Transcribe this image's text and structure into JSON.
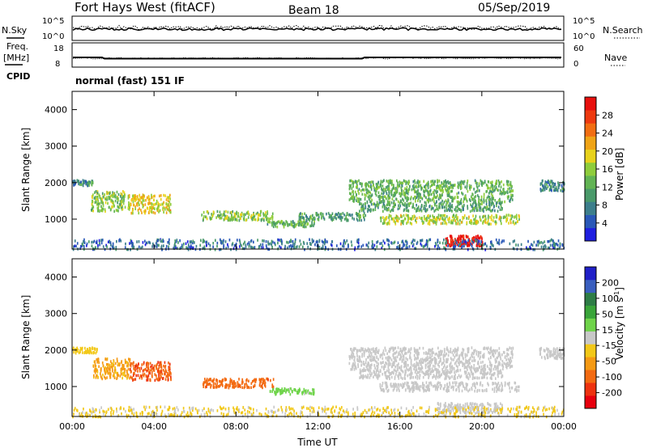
{
  "header": {
    "radar": "Fort Hays West (fitACF)",
    "beam": "Beam 18",
    "date": "05/Sep/2019"
  },
  "noise_panel": {
    "left_label": "N.Sky",
    "right_label": "N.Search",
    "left_ticks": [
      "10^5",
      "10^0"
    ],
    "right_ticks": [
      "10^5",
      "10^0"
    ]
  },
  "freq_panel": {
    "left_label": "Freq.",
    "left_unit": "[MHz]",
    "right_label": "Nave",
    "left_ticks": [
      "18",
      "8"
    ],
    "right_ticks": [
      "60",
      "0"
    ]
  },
  "cpid": {
    "label": "CPID",
    "value": "normal (fast) 151 IF"
  },
  "colors": {
    "power_scale": [
      "#1f1fe0",
      "#2a58b8",
      "#3d7f8c",
      "#4a9a6a",
      "#62b454",
      "#8fcd3c",
      "#e8d21c",
      "#f0a416",
      "#f26e12",
      "#ee3a10",
      "#e8100e"
    ],
    "velocity_scale": [
      "#2020c8",
      "#3a5fbf",
      "#2e7d46",
      "#3aa53a",
      "#6fd44a",
      "#c8c8c8",
      "#f2c818",
      "#f59a14",
      "#f36b12",
      "#ee3310",
      "#e8000e"
    ],
    "ground_scatter": "#b4b4b4"
  },
  "chart_data": [
    {
      "type": "heatmap",
      "title": "",
      "xlabel": "",
      "ylabel": "Slant Range [km]",
      "x_ticks": [
        "00:00",
        "04:00",
        "08:00",
        "12:00",
        "16:00",
        "20:00",
        "00:00"
      ],
      "y_ticks": [
        "1000",
        "2000",
        "3000",
        "4000"
      ],
      "xlim_hours": [
        0,
        24
      ],
      "ylim_km": [
        180,
        4500
      ],
      "colorbar": {
        "label": "Power [dB]",
        "ticks": [
          "4",
          "8",
          "12",
          "16",
          "20",
          "24",
          "28"
        ],
        "range": [
          0,
          30
        ]
      },
      "features": [
        {
          "t0": 0.0,
          "t1": 1.0,
          "r0": 1950,
          "r1": 2100,
          "value": 8
        },
        {
          "t0": 0.9,
          "t1": 2.6,
          "r0": 1250,
          "r1": 1800,
          "value": 14
        },
        {
          "t0": 2.7,
          "t1": 4.8,
          "r0": 1200,
          "r1": 1700,
          "value": 18
        },
        {
          "t0": 6.3,
          "t1": 9.8,
          "r0": 1000,
          "r1": 1250,
          "value": 14
        },
        {
          "t0": 9.5,
          "t1": 11.8,
          "r0": 820,
          "r1": 980,
          "value": 12
        },
        {
          "t0": 11.0,
          "t1": 14.3,
          "r0": 1000,
          "r1": 1200,
          "value": 10
        },
        {
          "t0": 13.5,
          "t1": 21.5,
          "r0": 1500,
          "r1": 2100,
          "value": 12
        },
        {
          "t0": 14.0,
          "t1": 21.0,
          "r0": 1250,
          "r1": 1500,
          "value": 10
        },
        {
          "t0": 15.0,
          "t1": 21.8,
          "r0": 900,
          "r1": 1150,
          "value": 16
        },
        {
          "t0": 18.2,
          "t1": 20.0,
          "r0": 300,
          "r1": 580,
          "value": 30
        },
        {
          "t0": 22.8,
          "t1": 24.0,
          "r0": 1800,
          "r1": 2100,
          "value": 8
        },
        {
          "t0": 0.0,
          "t1": 24.0,
          "r0": 200,
          "r1": 480,
          "value": 6
        }
      ]
    },
    {
      "type": "heatmap",
      "title": "",
      "xlabel": "Time UT",
      "ylabel": "Slant Range [km]",
      "x_ticks": [
        "00:00",
        "04:00",
        "08:00",
        "12:00",
        "16:00",
        "20:00",
        "00:00"
      ],
      "y_ticks": [
        "1000",
        "2000",
        "3000",
        "4000"
      ],
      "xlim_hours": [
        0,
        24
      ],
      "ylim_km": [
        180,
        4500
      ],
      "colorbar": {
        "label": "Velocity [m s^-1]",
        "ticks": [
          "200",
          "100",
          "50",
          "15",
          "-15",
          "-50",
          "-100",
          "-200"
        ],
        "range": [
          -250,
          250
        ]
      },
      "features": [
        {
          "t0": 0.0,
          "t1": 1.2,
          "r0": 1950,
          "r1": 2100,
          "value": -40
        },
        {
          "t0": 1.0,
          "t1": 2.8,
          "r0": 1250,
          "r1": 1800,
          "value": -80
        },
        {
          "t0": 2.8,
          "t1": 4.8,
          "r0": 1200,
          "r1": 1700,
          "value": -150
        },
        {
          "t0": 6.3,
          "t1": 9.8,
          "r0": 1000,
          "r1": 1250,
          "value": -140
        },
        {
          "t0": 9.5,
          "t1": 11.8,
          "r0": 820,
          "r1": 980,
          "value": 40
        },
        {
          "t0": 13.5,
          "t1": 21.5,
          "r0": 1500,
          "r1": 2100,
          "value": 0
        },
        {
          "t0": 14.0,
          "t1": 21.0,
          "r0": 1250,
          "r1": 1500,
          "value": 0
        },
        {
          "t0": 15.0,
          "t1": 21.8,
          "r0": 900,
          "r1": 1150,
          "value": 0
        },
        {
          "t0": 17.8,
          "t1": 21.0,
          "r0": 300,
          "r1": 580,
          "value": 0
        },
        {
          "t0": 22.8,
          "t1": 24.0,
          "r0": 1800,
          "r1": 2100,
          "value": 0
        },
        {
          "t0": 0.0,
          "t1": 24.0,
          "r0": 200,
          "r1": 480,
          "value": -30
        }
      ]
    }
  ]
}
